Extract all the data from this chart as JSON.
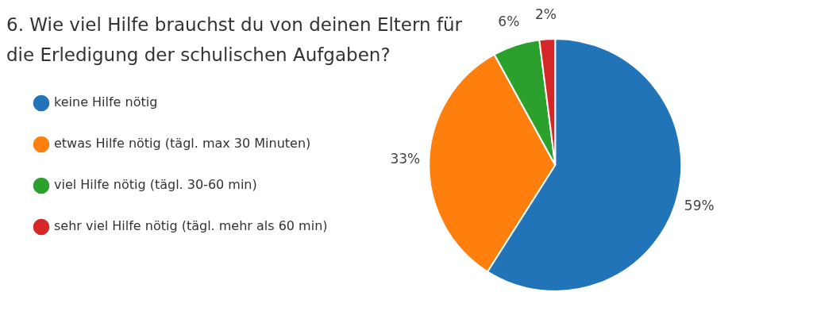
{
  "chart_data": {
    "type": "pie",
    "title": "6. Wie viel Hilfe brauchst du von deinen Eltern für die Erledigung der schulischen Aufgaben?",
    "categories": [
      "keine Hilfe nötig",
      "etwas Hilfe nötig (tägl. max 30 Minuten)",
      "viel Hilfe nötig (tägl. 30-60 min)",
      "sehr viel Hilfe nötig (tägl. mehr als 60 min)"
    ],
    "values": [
      59,
      33,
      6,
      2
    ],
    "colors": [
      "#2274b8",
      "#ff7f0e",
      "#2ca02c",
      "#d62728"
    ],
    "value_labels": [
      "59%",
      "33%",
      "6%",
      "2%"
    ],
    "legend": "left"
  }
}
